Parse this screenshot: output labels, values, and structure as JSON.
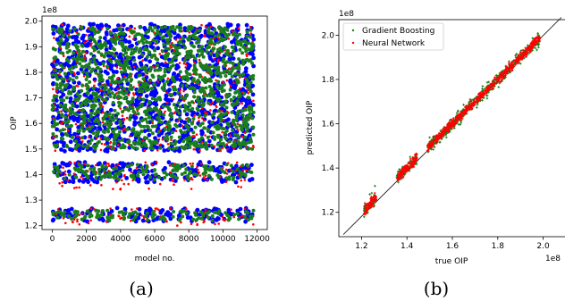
{
  "chart_data": [
    {
      "type": "scatter",
      "caption": "(a)",
      "xlabel": "model no.",
      "ylabel": "OIP",
      "offset_text": "1e8",
      "xlim": [
        -600,
        12600
      ],
      "ylim": [
        1.185,
        2.02
      ],
      "xticks": [
        0,
        2000,
        4000,
        6000,
        8000,
        10000,
        12000
      ],
      "xtick_labels": [
        "0",
        "2000",
        "4000",
        "6000",
        "8000",
        "10000",
        "12000"
      ],
      "yticks": [
        1.2,
        1.3,
        1.4,
        1.5,
        1.6,
        1.7,
        1.8,
        1.9,
        2.0
      ],
      "ytick_labels": [
        "1.2",
        "1.3",
        "1.4",
        "1.5",
        "1.6",
        "1.7",
        "1.8",
        "1.9",
        "2.0"
      ],
      "grid": false,
      "series": [
        {
          "color": "#0000ff",
          "bands": [
            [
              1.37,
              1.45
            ],
            [
              1.49,
              1.99
            ],
            [
              1.215,
              1.27
            ]
          ]
        },
        {
          "color": "#ff0000",
          "bands": [
            [
              1.2,
              1.27
            ],
            [
              1.34,
              1.45
            ],
            [
              1.49,
              1.99
            ]
          ]
        },
        {
          "color": "#1a7f1a",
          "bands": [
            [
              1.22,
              1.26
            ],
            [
              1.38,
              1.44
            ],
            [
              1.5,
              1.98
            ]
          ]
        }
      ]
    },
    {
      "type": "scatter",
      "caption": "(b)",
      "xlabel": "true OIP",
      "ylabel": "predicted OIP",
      "x_offset_text": "1e8",
      "y_offset_text": "1e8",
      "xlim": [
        1.1,
        2.1
      ],
      "ylim": [
        1.09,
        2.07
      ],
      "xticks": [
        1.2,
        1.4,
        1.6,
        1.8,
        2.0
      ],
      "xtick_labels": [
        "1.2",
        "1.4",
        "1.6",
        "1.8",
        "2.0"
      ],
      "yticks": [
        1.2,
        1.4,
        1.6,
        1.8,
        2.0
      ],
      "ytick_labels": [
        "1.2",
        "1.4",
        "1.6",
        "1.8",
        "2.0"
      ],
      "legend_position": "top-left",
      "reference_line": [
        [
          1.12,
          1.1
        ],
        [
          2.08,
          2.08
        ]
      ],
      "series": [
        {
          "name": "Gradient Boosting",
          "color": "#1a7f1a"
        },
        {
          "name": "Neural Network",
          "color": "#ff0000"
        }
      ]
    }
  ]
}
